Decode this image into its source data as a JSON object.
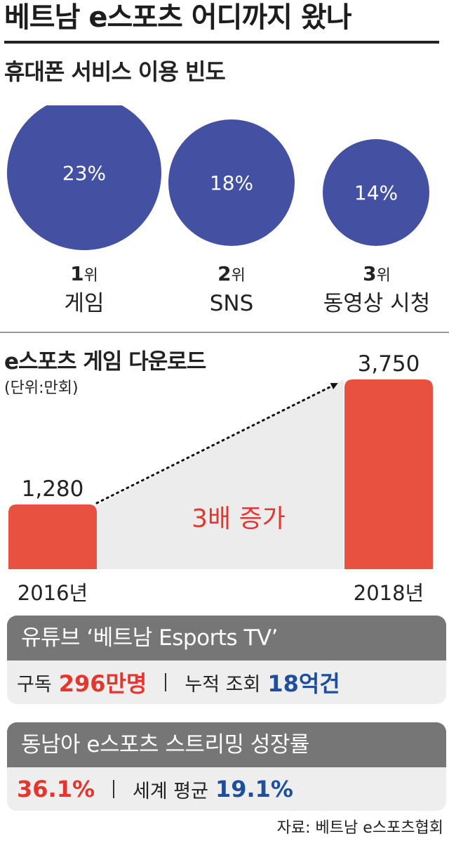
{
  "title": "베트남 e스포츠 어디까지 왔나",
  "phone_usage": {
    "title": "휴대폰 서비스 이용 빈도",
    "rank_suffix": "위",
    "color": "#4451a2",
    "items": [
      {
        "rank": "1",
        "name": "게임",
        "value_label": "23%"
      },
      {
        "rank": "2",
        "name": "SNS",
        "value_label": "18%"
      },
      {
        "rank": "3",
        "name": "동영상 시청",
        "value_label": "14%"
      }
    ]
  },
  "chart_data": {
    "type": "bar",
    "title": "e스포츠 게임 다운로드",
    "unit": "(단위:만회)",
    "categories": [
      "2016년",
      "2018년"
    ],
    "values": [
      1280,
      3750
    ],
    "value_labels": [
      "1,280",
      "3,750"
    ],
    "annotation": "3배 증가",
    "bar_color": "#e8503f",
    "annotation_color": "#e2362e"
  },
  "youtube": {
    "title": "유튜브 ‘베트남 Esports TV’",
    "subscribers_label": "구독",
    "subscribers_value": "296만명",
    "views_label": "누적 조회",
    "views_value": "18억건"
  },
  "streaming": {
    "title": "동남아 e스포츠 스트리밍 성장률",
    "sea_value": "36.1%",
    "world_label": "세계 평균",
    "world_value": "19.1%"
  },
  "source": "자료: 베트남 e스포츠협회",
  "colors": {
    "red": "#e2362e",
    "blue": "#1f4f9a",
    "panel_header": "#767676",
    "panel_body": "#eeeeee"
  }
}
